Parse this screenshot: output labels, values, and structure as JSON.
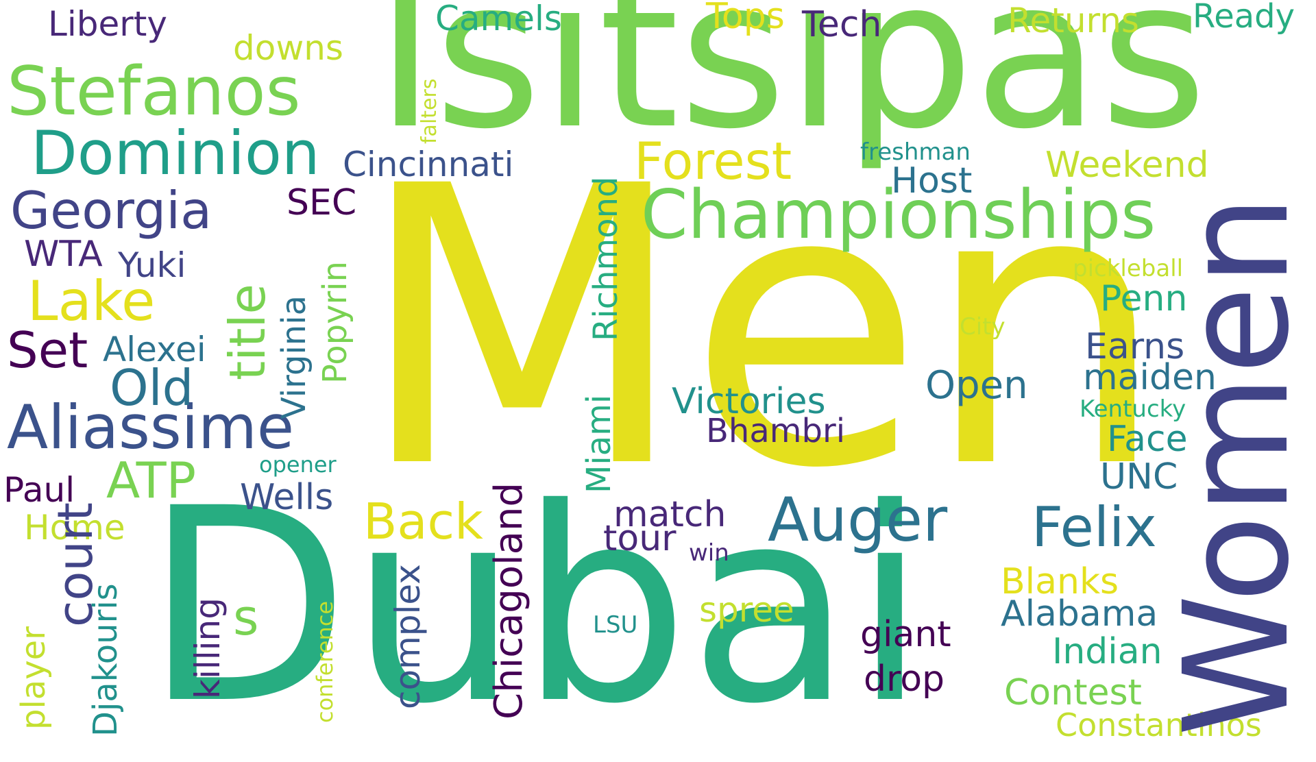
{
  "words": {
    "men": "Men",
    "dubai": "Dubai",
    "tsitsipas": "Tsitsipas",
    "women": "Women",
    "championships": "Championships",
    "stefanos": "Stefanos",
    "dominion": "Dominion",
    "georgia": "Georgia",
    "aliassime": "Aliassime",
    "auger": "Auger",
    "felix": "Felix",
    "lake": "Lake",
    "forest": "Forest",
    "old": "Old",
    "set": "Set",
    "back": "Back",
    "atp": "ATP",
    "s": "s",
    "title": "title",
    "virginia": "Virginia",
    "popyrin": "Popyrin",
    "falters": "falters",
    "richmond": "Richmond",
    "miami": "Miami",
    "chicagoland": "Chicagoland",
    "complex": "complex",
    "killing": "killing",
    "court": "court",
    "djakouris": "Djakouris",
    "player": "player",
    "conference": "conference",
    "victories": "Victories",
    "bhambri": "Bhambri",
    "open": "Open",
    "earns": "Earns",
    "maiden": "maiden",
    "penn": "Penn",
    "face": "Face",
    "unc": "UNC",
    "host": "Host",
    "weekend": "Weekend",
    "returns": "Returns",
    "ready": "Ready",
    "tech": "Tech",
    "tops": "Tops",
    "camels": "Camels",
    "liberty": "Liberty",
    "downs": "downs",
    "cincinnati": "Cincinnati",
    "freshman": "freshman",
    "pickleball": "pickleball",
    "city": "City",
    "kentucky": "Kentucky",
    "sec": "SEC",
    "wta": "WTA",
    "yuki": "Yuki",
    "alexei": "Alexei",
    "paul": "Paul",
    "wells": "Wells",
    "opener": "opener",
    "home": "Home",
    "match": "match",
    "tour": "tour",
    "win": "win",
    "spree": "spree",
    "lsu": "LSU",
    "giant": "giant",
    "drop": "drop",
    "blanks": "Blanks",
    "alabama": "Alabama",
    "indian": "Indian",
    "contest": "Contest",
    "constantinos": "Constantinos"
  },
  "colors": {
    "background": "#ffffff",
    "yellow": "#e4e01d",
    "lime": "#c3df2f",
    "green": "#6fcf57",
    "teal": "#27ad81",
    "blue": "#3b528b",
    "indigo": "#414487",
    "dark": "#440154"
  }
}
